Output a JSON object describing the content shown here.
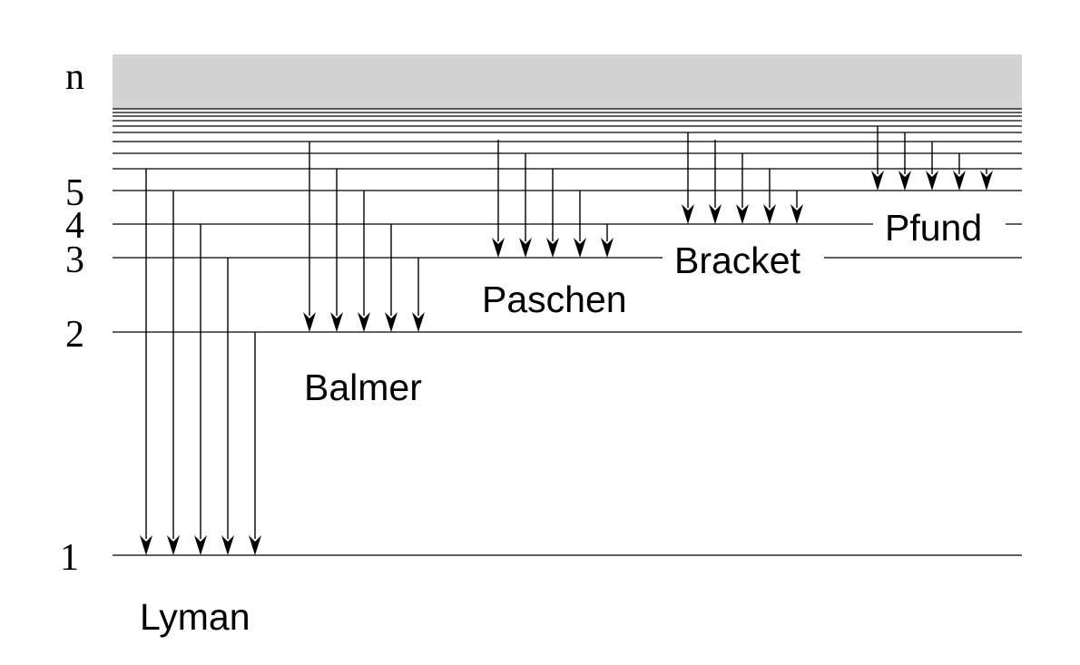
{
  "axis_label": "n",
  "levels": [
    {
      "n": "1",
      "label": "1"
    },
    {
      "n": "2",
      "label": "2"
    },
    {
      "n": "3",
      "label": "3"
    },
    {
      "n": "4",
      "label": "4"
    },
    {
      "n": "5",
      "label": "5"
    }
  ],
  "series": [
    {
      "name": "Lyman",
      "lower_level": 1,
      "transitions": 5
    },
    {
      "name": "Balmer",
      "lower_level": 2,
      "transitions": 5
    },
    {
      "name": "Paschen",
      "lower_level": 3,
      "transitions": 5
    },
    {
      "name": "Bracket",
      "lower_level": 4,
      "transitions": 5
    },
    {
      "name": "Pfund",
      "lower_level": 5,
      "transitions": 5
    }
  ],
  "colors": {
    "continuum": "#d3d3d3",
    "lines": "#000000"
  }
}
